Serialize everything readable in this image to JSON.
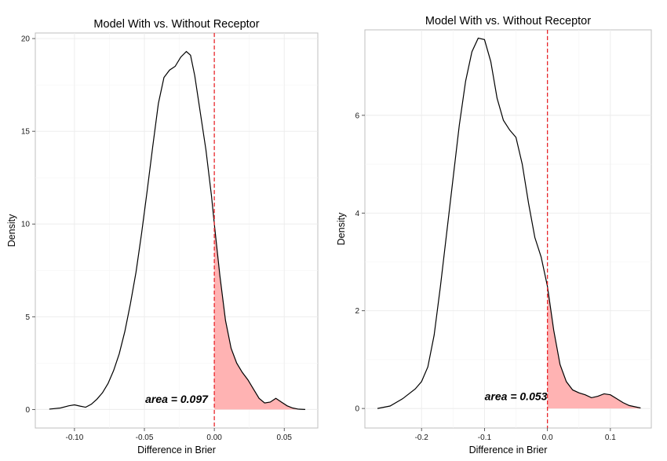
{
  "chart_data": [
    {
      "type": "area",
      "title": "Model With vs. Without Receptor",
      "xlabel": "Difference in Brier",
      "ylabel": "Density",
      "xlim": [
        -0.128,
        0.074
      ],
      "ylim": [
        -1.0,
        20.3
      ],
      "x_ticks": [
        -0.1,
        -0.05,
        0.0,
        0.05
      ],
      "x_tick_labels": [
        "-0.10",
        "-0.05",
        "0.00",
        "0.05"
      ],
      "y_ticks": [
        0,
        5,
        10,
        15,
        20
      ],
      "y_tick_labels": [
        "0",
        "5",
        "10",
        "15",
        "20"
      ],
      "grid": true,
      "reference_line": {
        "x": 0.0,
        "color": "#e8262b",
        "style": "dashed"
      },
      "shaded_region": {
        "from_x": 0.0,
        "color": "#ffb3b3"
      },
      "annotation": {
        "text": "area = 0.097",
        "x": -0.027,
        "y": 0.35
      },
      "series": [
        {
          "x": [
            -0.118,
            -0.11,
            -0.104,
            -0.1,
            -0.096,
            -0.092,
            -0.088,
            -0.084,
            -0.08,
            -0.076,
            -0.072,
            -0.068,
            -0.064,
            -0.06,
            -0.056,
            -0.052,
            -0.048,
            -0.044,
            -0.04,
            -0.036,
            -0.032,
            -0.028,
            -0.024,
            -0.02,
            -0.017,
            -0.014,
            -0.01,
            -0.006,
            -0.002,
            0.0,
            0.004,
            0.008,
            0.012,
            0.016,
            0.02,
            0.024,
            0.028,
            0.032,
            0.036,
            0.04,
            0.044,
            0.048,
            0.052,
            0.056,
            0.06,
            0.065
          ],
          "y": [
            0.02,
            0.08,
            0.2,
            0.25,
            0.18,
            0.12,
            0.28,
            0.55,
            0.9,
            1.4,
            2.1,
            3.0,
            4.2,
            5.7,
            7.4,
            9.5,
            11.8,
            14.2,
            16.5,
            17.9,
            18.3,
            18.5,
            19.0,
            19.3,
            19.1,
            18.0,
            16.0,
            14.0,
            11.5,
            10.0,
            7.2,
            4.8,
            3.3,
            2.5,
            2.0,
            1.6,
            1.1,
            0.6,
            0.35,
            0.4,
            0.6,
            0.4,
            0.2,
            0.08,
            0.02,
            0.0
          ]
        }
      ]
    },
    {
      "type": "area",
      "title": "Model With vs. Without Receptor",
      "xlabel": "Difference in Brier",
      "ylabel": "Density",
      "xlim": [
        -0.29,
        0.165
      ],
      "ylim": [
        -0.4,
        7.75
      ],
      "x_ticks": [
        -0.2,
        -0.1,
        0.0,
        0.1
      ],
      "x_tick_labels": [
        "-0.2",
        "-0.1",
        "0.0",
        "0.1"
      ],
      "y_ticks": [
        0,
        2,
        4,
        6
      ],
      "y_tick_labels": [
        "0",
        "2",
        "4",
        "6"
      ],
      "grid": true,
      "reference_line": {
        "x": 0.0,
        "color": "#e8262b",
        "style": "dashed"
      },
      "shaded_region": {
        "from_x": 0.0,
        "color": "#ffb3b3"
      },
      "annotation": {
        "text": "area = 0.053",
        "x": -0.05,
        "y": 0.17
      },
      "series": [
        {
          "x": [
            -0.27,
            -0.25,
            -0.23,
            -0.21,
            -0.2,
            -0.19,
            -0.18,
            -0.17,
            -0.16,
            -0.15,
            -0.14,
            -0.13,
            -0.12,
            -0.11,
            -0.1,
            -0.09,
            -0.08,
            -0.07,
            -0.06,
            -0.05,
            -0.04,
            -0.03,
            -0.02,
            -0.01,
            0.0,
            0.01,
            0.02,
            0.03,
            0.04,
            0.05,
            0.06,
            0.07,
            0.08,
            0.09,
            0.1,
            0.11,
            0.12,
            0.13,
            0.148
          ],
          "y": [
            0.0,
            0.05,
            0.2,
            0.4,
            0.55,
            0.85,
            1.5,
            2.5,
            3.6,
            4.7,
            5.8,
            6.7,
            7.3,
            7.58,
            7.55,
            7.1,
            6.35,
            5.9,
            5.7,
            5.55,
            5.0,
            4.2,
            3.5,
            3.1,
            2.5,
            1.6,
            0.9,
            0.55,
            0.38,
            0.32,
            0.28,
            0.22,
            0.25,
            0.3,
            0.28,
            0.2,
            0.12,
            0.06,
            0.01
          ]
        }
      ]
    }
  ]
}
